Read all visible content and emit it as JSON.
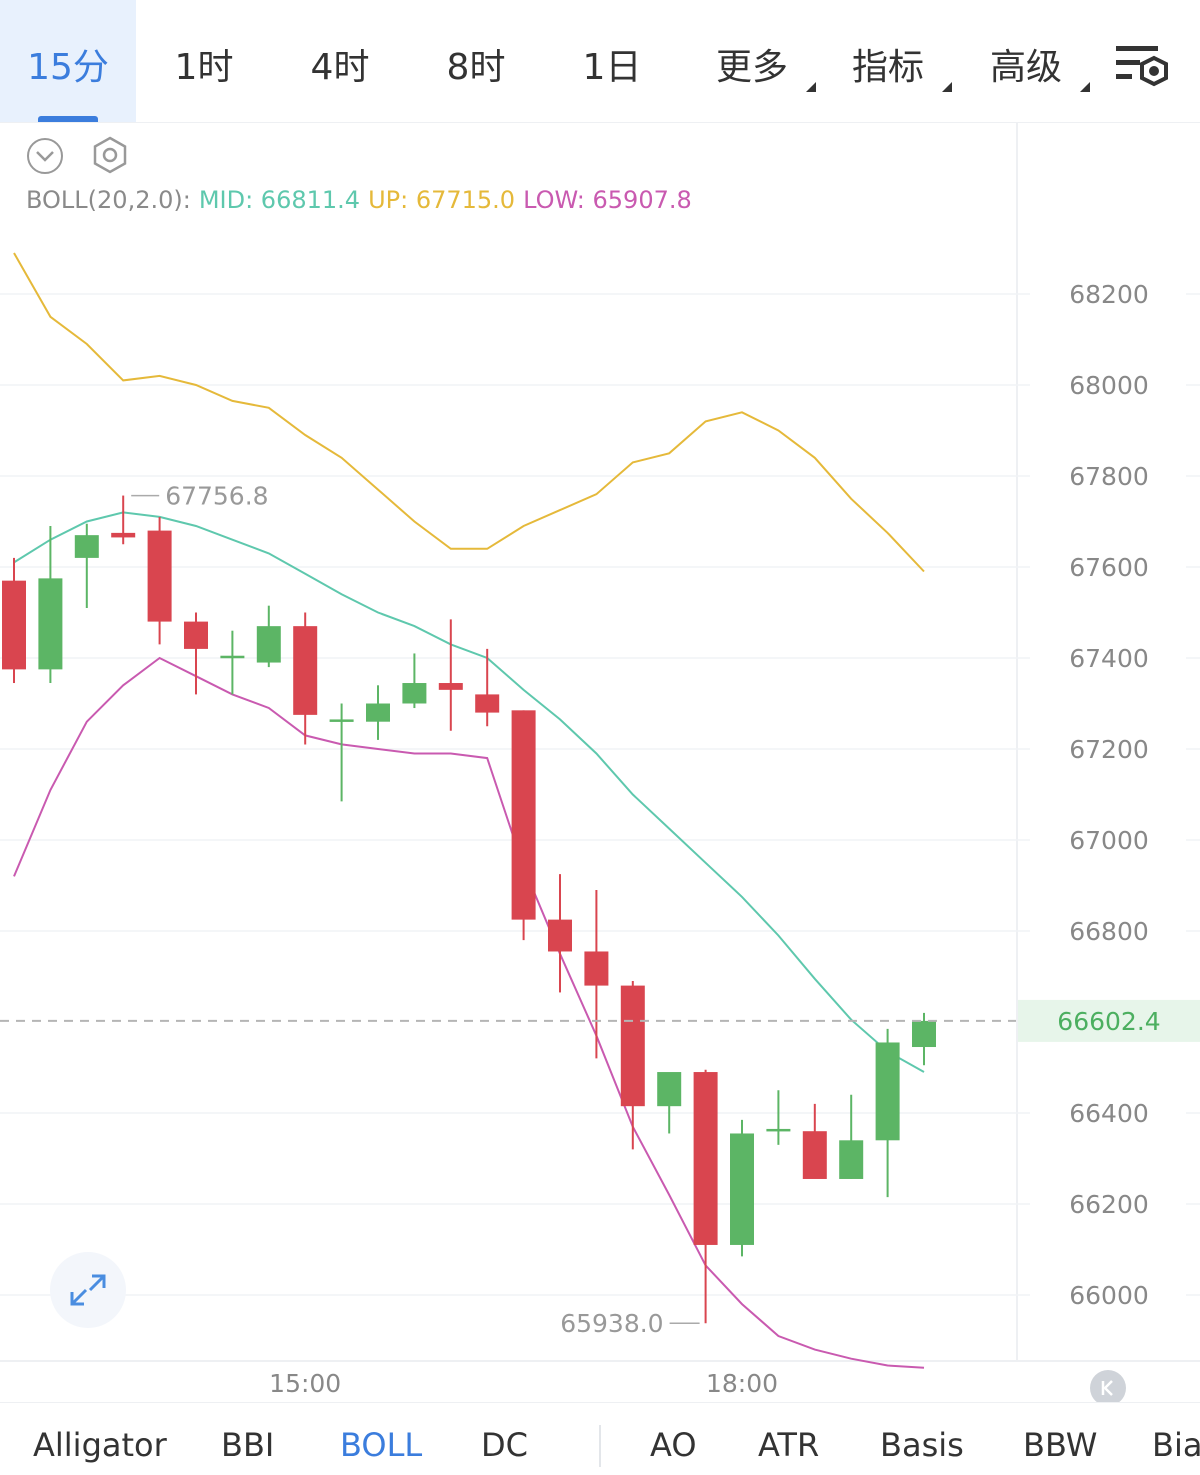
{
  "tabs": {
    "items": [
      {
        "label": "15分"
      },
      {
        "label": "1时"
      },
      {
        "label": "4时"
      },
      {
        "label": "8时"
      },
      {
        "label": "1日"
      },
      {
        "label": "更多"
      },
      {
        "label": "指标"
      },
      {
        "label": "高级"
      }
    ]
  },
  "legend": {
    "name": "BOLL(20,2.0):",
    "mid": "MID: 66811.4",
    "up": "UP: 67715.0",
    "low": "LOW: 65907.8"
  },
  "colors": {
    "up_candle": "#5cb565",
    "down_candle": "#d9454f",
    "mid": "#5ec8ad",
    "upper": "#e5b93a",
    "lower": "#c95ab0",
    "accent": "#3b7ddd",
    "last_price_bg": "#e7f5ea",
    "last_price_text": "#4caf60"
  },
  "chart_data": {
    "type": "candlestick",
    "interval": "15分",
    "y_axis": {
      "ticks": [
        "68200",
        "68000",
        "67800",
        "67600",
        "67400",
        "67200",
        "67000",
        "66800",
        "66400",
        "66200",
        "66000"
      ]
    },
    "ylim": [
      65850,
      68450
    ],
    "x_axis": {
      "labels": [
        {
          "index": 8,
          "label": "15:00"
        },
        {
          "index": 20,
          "label": "18:00"
        }
      ]
    },
    "last_price": "66602.4",
    "high_marker": {
      "index": 3,
      "value": 67756.8,
      "label": "67756.8"
    },
    "low_marker": {
      "index": 19,
      "value": 65938.0,
      "label": "65938.0"
    },
    "candles": [
      {
        "o": 67570,
        "h": 67620,
        "l": 67345,
        "c": 67375
      },
      {
        "o": 67375,
        "h": 67690,
        "l": 67345,
        "c": 67575
      },
      {
        "o": 67620,
        "h": 67695,
        "l": 67510,
        "c": 67670
      },
      {
        "o": 67675,
        "h": 67757,
        "l": 67650,
        "c": 67665
      },
      {
        "o": 67680,
        "h": 67710,
        "l": 67430,
        "c": 67480
      },
      {
        "o": 67480,
        "h": 67500,
        "l": 67320,
        "c": 67420
      },
      {
        "o": 67400,
        "h": 67460,
        "l": 67320,
        "c": 67405
      },
      {
        "o": 67390,
        "h": 67515,
        "l": 67380,
        "c": 67470
      },
      {
        "o": 67470,
        "h": 67500,
        "l": 67210,
        "c": 67275
      },
      {
        "o": 67265,
        "h": 67300,
        "l": 67085,
        "c": 67265
      },
      {
        "o": 67260,
        "h": 67340,
        "l": 67220,
        "c": 67300
      },
      {
        "o": 67300,
        "h": 67410,
        "l": 67290,
        "c": 67345
      },
      {
        "o": 67345,
        "h": 67485,
        "l": 67240,
        "c": 67330
      },
      {
        "o": 67320,
        "h": 67420,
        "l": 67250,
        "c": 67280
      },
      {
        "o": 67285,
        "h": 67285,
        "l": 66780,
        "c": 66825
      },
      {
        "o": 66825,
        "h": 66925,
        "l": 66665,
        "c": 66755
      },
      {
        "o": 66755,
        "h": 66890,
        "l": 66520,
        "c": 66680
      },
      {
        "o": 66680,
        "h": 66690,
        "l": 66320,
        "c": 66415
      },
      {
        "o": 66415,
        "h": 66475,
        "l": 66355,
        "c": 66490
      },
      {
        "o": 66490,
        "h": 66495,
        "l": 65938,
        "c": 66110
      },
      {
        "o": 66110,
        "h": 66385,
        "l": 66085,
        "c": 66355
      },
      {
        "o": 66360,
        "h": 66450,
        "l": 66330,
        "c": 66365
      },
      {
        "o": 66360,
        "h": 66420,
        "l": 66260,
        "c": 66255
      },
      {
        "o": 66255,
        "h": 66440,
        "l": 66255,
        "c": 66340
      },
      {
        "o": 66340,
        "h": 66585,
        "l": 66215,
        "c": 66555
      },
      {
        "o": 66545,
        "h": 66620,
        "l": 66505,
        "c": 66602.4
      }
    ],
    "bands": {
      "upper": [
        68290,
        68150,
        68090,
        68010,
        68020,
        68000,
        67965,
        67950,
        67890,
        67840,
        67770,
        67700,
        67640,
        67640,
        67690,
        67725,
        67760,
        67830,
        67850,
        67920,
        67940,
        67900,
        67840,
        67750,
        67675,
        67590
      ],
      "mid": [
        67610,
        67660,
        67700,
        67720,
        67710,
        67690,
        67660,
        67630,
        67585,
        67540,
        67500,
        67470,
        67430,
        67400,
        67330,
        67265,
        67190,
        67100,
        67025,
        66950,
        66875,
        66790,
        66695,
        66605,
        66535,
        66490
      ],
      "lower": [
        66920,
        67110,
        67260,
        67340,
        67400,
        67360,
        67320,
        67290,
        67230,
        67210,
        67200,
        67190,
        67190,
        67180,
        66940,
        66750,
        66570,
        66370,
        66220,
        66065,
        65980,
        65910,
        65880,
        65860,
        65845,
        65840
      ]
    }
  }
}
